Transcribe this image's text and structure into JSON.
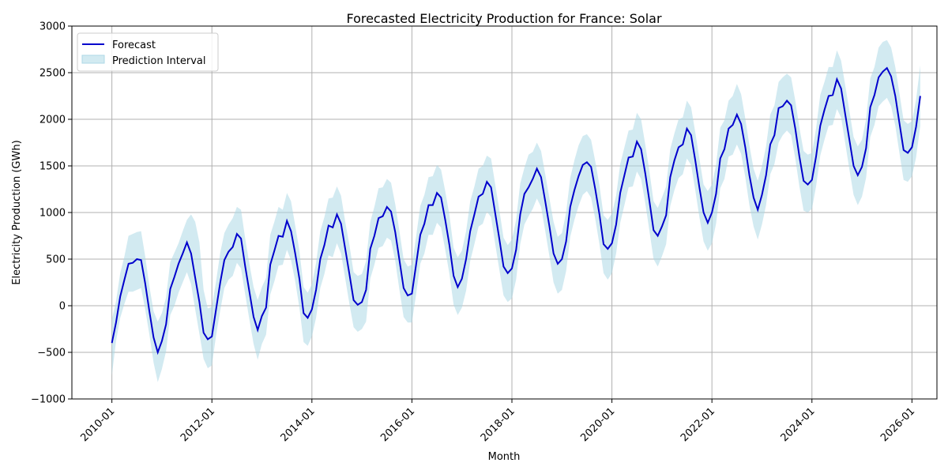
{
  "chart_data": {
    "type": "line",
    "title": "Forecasted Electricity Production for France: Solar",
    "xlabel": "Month",
    "ylabel": "Electricity Production (GWh)",
    "ylim": [
      -1000,
      3000
    ],
    "xlim_years": [
      2009.2,
      2026.5
    ],
    "grid": true,
    "legend_position": "top-left",
    "yticks": [
      -1000,
      -500,
      0,
      500,
      1000,
      1500,
      2000,
      2500,
      3000
    ],
    "xtick_labels": [
      "2010-01",
      "2012-01",
      "2014-01",
      "2016-01",
      "2018-01",
      "2020-01",
      "2022-01",
      "2024-01",
      "2026-01"
    ],
    "xtick_years": [
      2010,
      2012,
      2014,
      2016,
      2018,
      2020,
      2022,
      2024,
      2026
    ],
    "start_month": "2010-01",
    "colors": {
      "forecast": "#0000cc",
      "interval": "#add8e6"
    },
    "series": [
      {
        "name": "Forecast",
        "values": [
          -400,
          -180,
          100,
          280,
          450,
          460,
          500,
          490,
          240,
          -60,
          -340,
          -500,
          -380,
          -200,
          180,
          310,
          450,
          560,
          680,
          560,
          300,
          40,
          -290,
          -360,
          -330,
          -40,
          250,
          490,
          580,
          630,
          770,
          720,
          420,
          150,
          -120,
          -260,
          -110,
          -20,
          440,
          590,
          750,
          740,
          910,
          800,
          560,
          290,
          -80,
          -130,
          -40,
          170,
          500,
          650,
          860,
          840,
          980,
          880,
          610,
          340,
          60,
          10,
          40,
          170,
          610,
          750,
          940,
          960,
          1060,
          1010,
          790,
          490,
          190,
          110,
          130,
          440,
          760,
          880,
          1080,
          1080,
          1210,
          1160,
          920,
          650,
          320,
          200,
          290,
          500,
          800,
          980,
          1170,
          1200,
          1330,
          1270,
          990,
          710,
          420,
          350,
          400,
          600,
          980,
          1200,
          1270,
          1360,
          1470,
          1380,
          1120,
          850,
          560,
          450,
          500,
          690,
          1060,
          1240,
          1390,
          1510,
          1540,
          1490,
          1250,
          980,
          660,
          610,
          670,
          870,
          1210,
          1400,
          1590,
          1600,
          1760,
          1680,
          1420,
          1120,
          810,
          750,
          850,
          970,
          1380,
          1560,
          1700,
          1730,
          1900,
          1830,
          1560,
          1270,
          1000,
          890,
          1000,
          1200,
          1580,
          1680,
          1900,
          1940,
          2050,
          1950,
          1700,
          1400,
          1160,
          1030,
          1190,
          1400,
          1730,
          1830,
          2120,
          2140,
          2200,
          2150,
          1900,
          1600,
          1340,
          1300,
          1350,
          1600,
          1930,
          2100,
          2250,
          2260,
          2430,
          2330,
          2050,
          1780,
          1500,
          1400,
          1490,
          1690,
          2130,
          2260,
          2450,
          2510,
          2550,
          2460,
          2250,
          1960,
          1670,
          1640,
          1700,
          1920,
          2250
        ],
        "lower": [
          -750,
          -380,
          -130,
          20,
          150,
          150,
          170,
          190,
          -40,
          -310,
          -610,
          -820,
          -680,
          -490,
          -100,
          0,
          140,
          250,
          360,
          230,
          -40,
          -300,
          -570,
          -670,
          -640,
          -320,
          -50,
          190,
          280,
          320,
          460,
          400,
          120,
          -150,
          -410,
          -580,
          -410,
          -310,
          120,
          260,
          430,
          440,
          600,
          490,
          260,
          -20,
          -390,
          -430,
          -330,
          -130,
          190,
          340,
          540,
          520,
          670,
          560,
          290,
          20,
          -230,
          -280,
          -250,
          -170,
          290,
          440,
          620,
          640,
          730,
          700,
          480,
          170,
          -120,
          -180,
          -180,
          120,
          450,
          560,
          760,
          760,
          890,
          840,
          600,
          340,
          10,
          -100,
          -20,
          160,
          480,
          660,
          850,
          880,
          1010,
          950,
          660,
          380,
          110,
          40,
          80,
          280,
          660,
          870,
          960,
          1040,
          1150,
          1060,
          800,
          530,
          250,
          130,
          170,
          370,
          740,
          920,
          1070,
          1190,
          1230,
          1160,
          930,
          660,
          350,
          280,
          350,
          560,
          890,
          1080,
          1270,
          1280,
          1440,
          1360,
          1100,
          800,
          500,
          420,
          530,
          660,
          1070,
          1240,
          1370,
          1410,
          1580,
          1510,
          1240,
          950,
          690,
          590,
          670,
          880,
          1260,
          1360,
          1600,
          1620,
          1730,
          1630,
          1380,
          1080,
          850,
          710,
          870,
          1080,
          1410,
          1520,
          1750,
          1830,
          1880,
          1830,
          1580,
          1280,
          1020,
          1000,
          1040,
          1280,
          1610,
          1780,
          1930,
          1940,
          2110,
          2020,
          1740,
          1460,
          1190,
          1080,
          1170,
          1370,
          1810,
          1940,
          2140,
          2190,
          2230,
          2140,
          1930,
          1640,
          1350,
          1330,
          1390,
          1590,
          1930
        ],
        "upper": [
          -150,
          50,
          350,
          530,
          750,
          770,
          790,
          800,
          530,
          210,
          -60,
          -170,
          -80,
          90,
          470,
          570,
          670,
          800,
          920,
          980,
          900,
          680,
          170,
          -30,
          -10,
          260,
          570,
          780,
          870,
          940,
          1060,
          1030,
          720,
          450,
          200,
          60,
          200,
          300,
          760,
          900,
          1060,
          1030,
          1210,
          1120,
          860,
          590,
          200,
          140,
          230,
          460,
          800,
          950,
          1150,
          1160,
          1280,
          1180,
          900,
          650,
          360,
          320,
          340,
          480,
          900,
          1060,
          1260,
          1270,
          1360,
          1320,
          1090,
          800,
          500,
          420,
          440,
          740,
          1070,
          1190,
          1380,
          1390,
          1510,
          1460,
          1230,
          970,
          620,
          520,
          590,
          800,
          1120,
          1280,
          1470,
          1500,
          1610,
          1580,
          1300,
          1020,
          730,
          650,
          710,
          920,
          1310,
          1480,
          1620,
          1650,
          1750,
          1660,
          1410,
          1150,
          900,
          740,
          780,
          1000,
          1370,
          1560,
          1720,
          1820,
          1840,
          1780,
          1550,
          1290,
          970,
          920,
          990,
          1180,
          1520,
          1700,
          1880,
          1890,
          2070,
          2000,
          1730,
          1440,
          1120,
          1050,
          1160,
          1280,
          1680,
          1850,
          2000,
          2020,
          2200,
          2130,
          1860,
          1580,
          1300,
          1230,
          1300,
          1510,
          1910,
          1990,
          2200,
          2250,
          2380,
          2270,
          2010,
          1720,
          1470,
          1340,
          1500,
          1710,
          2050,
          2150,
          2400,
          2450,
          2490,
          2450,
          2200,
          1910,
          1660,
          1620,
          1640,
          1900,
          2260,
          2400,
          2560,
          2560,
          2740,
          2630,
          2360,
          2090,
          1810,
          1710,
          1780,
          2000,
          2440,
          2560,
          2770,
          2830,
          2850,
          2770,
          2560,
          2280,
          1990,
          1950,
          1980,
          2210,
          2580
        ]
      }
    ]
  }
}
